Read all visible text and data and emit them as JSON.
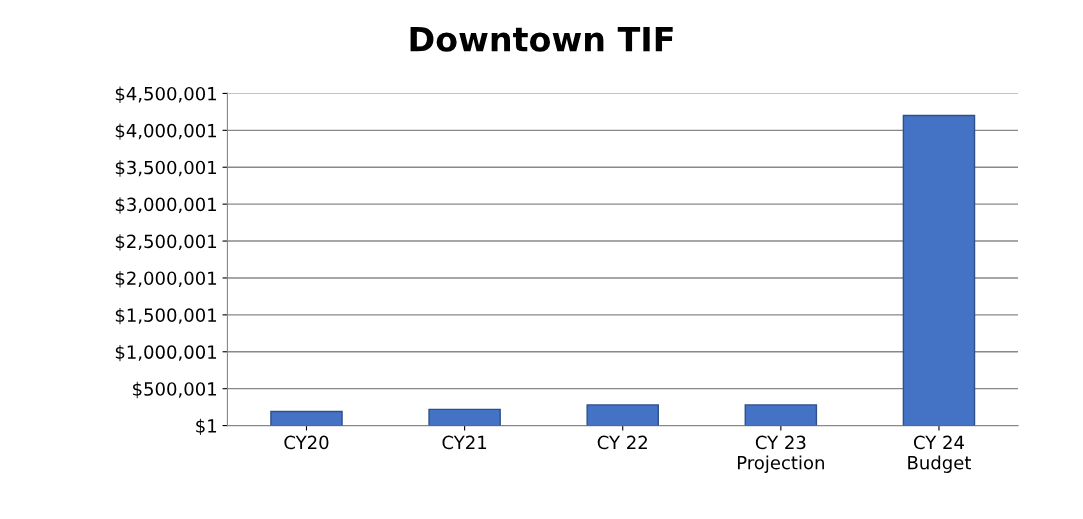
{
  "chart_data": {
    "type": "bar",
    "title": "Downtown TIF",
    "categories": [
      "CY20",
      "CY21",
      "CY 22",
      "CY 23\nProjection",
      "CY 24\nBudget"
    ],
    "values": [
      190000,
      220000,
      280000,
      280000,
      4200000
    ],
    "color": "#4472c4",
    "ylim": [
      1,
      4500001
    ],
    "yticks": [
      {
        "value": 1,
        "label": "$1"
      },
      {
        "value": 500001,
        "label": "$500,001"
      },
      {
        "value": 1000001,
        "label": "$1,000,001"
      },
      {
        "value": 1500001,
        "label": "$1,500,001"
      },
      {
        "value": 2000001,
        "label": "$2,000,001"
      },
      {
        "value": 2500001,
        "label": "$2,500,001"
      },
      {
        "value": 3000001,
        "label": "$3,000,001"
      },
      {
        "value": 3500001,
        "label": "$3,500,001"
      },
      {
        "value": 4000001,
        "label": "$4,000,001"
      },
      {
        "value": 4500001,
        "label": "$4,500,001"
      }
    ],
    "grid": "y"
  }
}
